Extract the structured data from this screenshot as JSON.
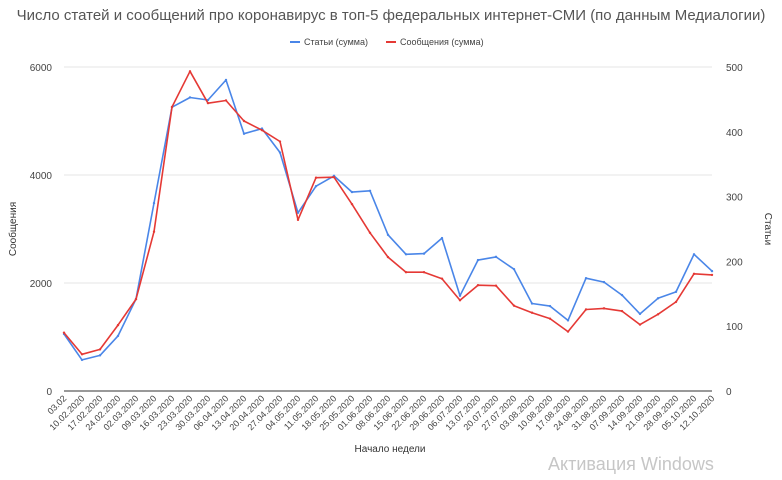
{
  "chart_data": {
    "type": "line",
    "title": "Число статей и сообщений про коронавирус в топ-5 федеральных интернет-СМИ (по данным Медиалогии)",
    "xlabel": "Начало недели",
    "ylabel_left": "Сообщения",
    "ylabel_right": "Статьи",
    "ylim_left": [
      0,
      6000
    ],
    "ylim_right": [
      0,
      500
    ],
    "yticks_left": [
      "0",
      "2000",
      "4000",
      "6000"
    ],
    "yticks_right": [
      "0",
      "100",
      "200",
      "300",
      "400",
      "500"
    ],
    "grid": true,
    "legend_position": "top",
    "x": [
      "03.02",
      "10.02.2020",
      "17.02.2020",
      "24.02.2020",
      "02.03.2020",
      "09.03.2020",
      "16.03.2020",
      "23.03.2020",
      "30.03.2020",
      "06.04.2020",
      "13.04.2020",
      "20.04.2020",
      "27.04.2020",
      "04.05.2020",
      "11.05.2020",
      "18.05.2020",
      "25.05.2020",
      "01.06.2020",
      "08.06.2020",
      "15.06.2020",
      "22.06.2020",
      "29.06.2020",
      "06.07.2020",
      "13.07.2020",
      "20.07.2020",
      "27.07.2020",
      "03.08.2020",
      "10.08.2020",
      "17.08.2020",
      "24.08.2020",
      "31.08.2020",
      "07.09.2020",
      "14.09.2020",
      "21.09.2020",
      "28.09.2020",
      "05.10.2020",
      "12.10.2020"
    ],
    "series": [
      {
        "name": "Статьи (сумма)",
        "axis": "right",
        "color": "#4a86e8",
        "values": [
          88,
          48,
          55,
          85,
          142,
          290,
          438,
          453,
          449,
          480,
          397,
          405,
          368,
          275,
          316,
          332,
          307,
          309,
          241,
          211,
          212,
          236,
          147,
          202,
          207,
          188,
          135,
          131,
          109,
          174,
          168,
          148,
          119,
          143,
          153,
          211,
          185
        ]
      },
      {
        "name": "Сообщения (сумма)",
        "axis": "left",
        "color": "#e53935",
        "values": [
          1080,
          680,
          770,
          1220,
          1700,
          2950,
          5260,
          5920,
          5330,
          5380,
          5000,
          4830,
          4620,
          3170,
          3950,
          3960,
          3460,
          2930,
          2480,
          2200,
          2200,
          2080,
          1680,
          1960,
          1950,
          1580,
          1450,
          1340,
          1100,
          1510,
          1530,
          1480,
          1230,
          1420,
          1650,
          2170,
          2150
        ]
      }
    ]
  },
  "watermark": "Активация Windows"
}
